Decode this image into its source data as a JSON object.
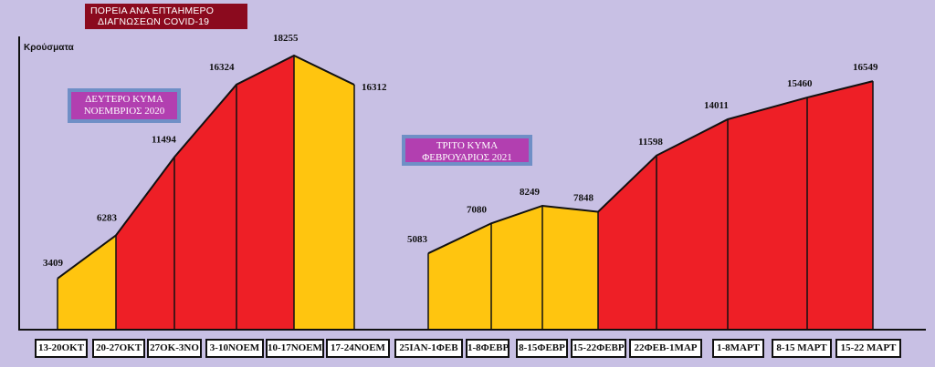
{
  "title_lines": [
    "ΠΟΡΕΙΑ ΑΝΑ ΕΠΤΑΗΜΕΡΟ",
    "ΔΙΑΓΝΩΣΕΩΝ COVID-19"
  ],
  "ylabel": "Κρούσματα",
  "wave2": {
    "line1": "ΔΕΥΤΕΡΟ ΚΥΜΑ",
    "line2": "ΝΟΕΜΒΡΙΟΣ 2020"
  },
  "wave3": {
    "line1": "ΤΡΙΤΟ ΚΥΜΑ",
    "line2": "ΦΕΒΡΟΥΑΡΙΟΣ 2021"
  },
  "colors": {
    "background": "#c8c0e4",
    "yellow": "#ffc50f",
    "red": "#ee1f26",
    "title_bg": "#8b0a1e",
    "wave_bg": "#b23fb0",
    "wave_border": "#6f8fc6"
  },
  "chart_data": {
    "type": "area",
    "ylabel": "Κρούσματα",
    "ylim": [
      0,
      20000
    ],
    "segments": [
      {
        "name": "ΔΕΥΤΕΡΟ ΚΥΜΑ",
        "categories": [
          "13-20ΟΚΤ",
          "20-27ΟΚΤ",
          "27ΟΚ-3ΝΟ",
          "3-10ΝΟΕΜ",
          "10-17ΝΟΕΜ",
          "17-24ΝΟΕΜ"
        ],
        "values": [
          3409,
          6283,
          11494,
          16324,
          18255,
          16312
        ],
        "band_colors": [
          "yellow",
          "red",
          "red",
          "red",
          "yellow"
        ]
      },
      {
        "name": "ΤΡΙΤΟ ΚΥΜΑ",
        "categories": [
          "25ΙΑΝ-1ΦΕΒ",
          "1-8ΦΕΒΡ",
          "8-15ΦΕΒΡ",
          "15-22ΦΕΒΡ",
          "22ΦΕΒ-1ΜΑΡ",
          "1-8ΜΑΡΤ",
          "8-15 ΜΑΡΤ",
          "15-22 ΜΑΡΤ"
        ],
        "values": [
          5083,
          7080,
          8249,
          7848,
          11598,
          14011,
          15460,
          16549
        ],
        "band_colors": [
          "yellow",
          "yellow",
          "yellow",
          "red",
          "red",
          "red",
          "red"
        ]
      }
    ]
  }
}
